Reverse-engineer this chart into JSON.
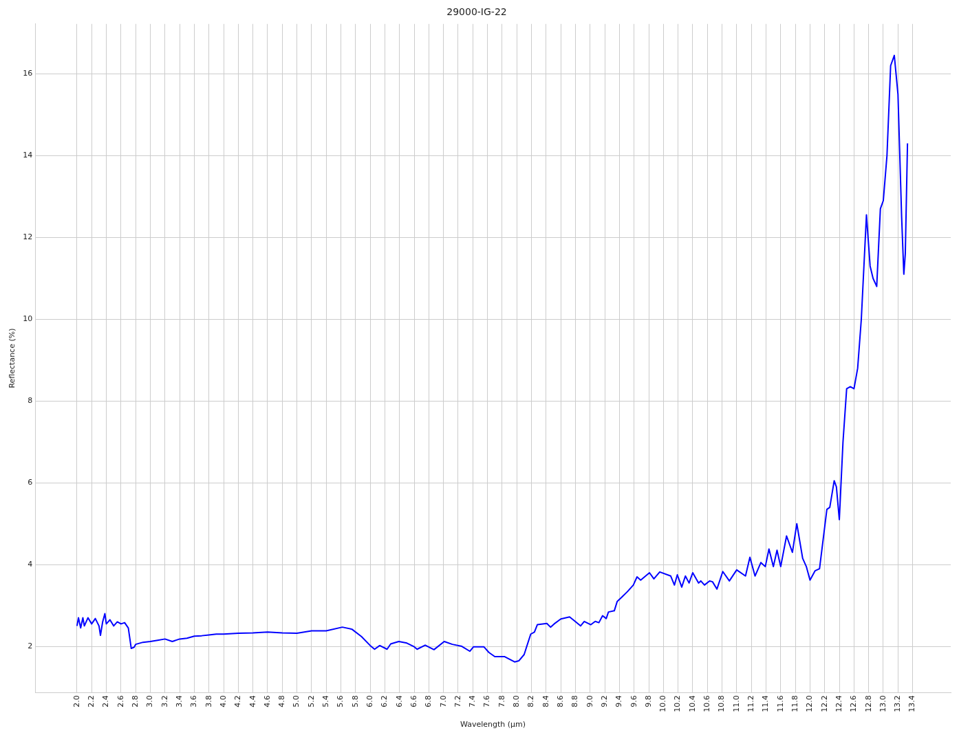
{
  "chart_data": {
    "type": "line",
    "title": "29000-IG-22",
    "xlabel": "Wavelength (μm)",
    "ylabel": "Reflectance (%)",
    "xlim": [
      1.43,
      13.92
    ],
    "ylim": [
      0.87,
      17.22
    ],
    "xticks": [
      {
        "value": 2,
        "label": "2.0"
      },
      {
        "value": 2.2,
        "label": "2.2"
      },
      {
        "value": 2.4,
        "label": "2.4"
      },
      {
        "value": 2.6,
        "label": "2.6"
      },
      {
        "value": 2.8,
        "label": "2.8"
      },
      {
        "value": 3,
        "label": "3.0"
      },
      {
        "value": 3.2,
        "label": "3.2"
      },
      {
        "value": 3.4,
        "label": "3.4"
      },
      {
        "value": 3.6,
        "label": "3.6"
      },
      {
        "value": 3.8,
        "label": "3.8"
      },
      {
        "value": 4,
        "label": "4.0"
      },
      {
        "value": 4.2,
        "label": "4.2"
      },
      {
        "value": 4.4,
        "label": "4.4"
      },
      {
        "value": 4.6,
        "label": "4.6"
      },
      {
        "value": 4.8,
        "label": "4.8"
      },
      {
        "value": 5,
        "label": "5.0"
      },
      {
        "value": 5.2,
        "label": "5.2"
      },
      {
        "value": 5.4,
        "label": "5.4"
      },
      {
        "value": 5.6,
        "label": "5.6"
      },
      {
        "value": 5.8,
        "label": "5.8"
      },
      {
        "value": 6,
        "label": "6.0"
      },
      {
        "value": 6.2,
        "label": "6.2"
      },
      {
        "value": 6.4,
        "label": "6.4"
      },
      {
        "value": 6.6,
        "label": "6.6"
      },
      {
        "value": 6.8,
        "label": "6.8"
      },
      {
        "value": 7,
        "label": "7.0"
      },
      {
        "value": 7.2,
        "label": "7.2"
      },
      {
        "value": 7.4,
        "label": "7.4"
      },
      {
        "value": 7.6,
        "label": "7.6"
      },
      {
        "value": 7.8,
        "label": "7.8"
      },
      {
        "value": 8,
        "label": "8.0"
      },
      {
        "value": 8.2,
        "label": "8.2"
      },
      {
        "value": 8.4,
        "label": "8.4"
      },
      {
        "value": 8.6,
        "label": "8.6"
      },
      {
        "value": 8.8,
        "label": "8.8"
      },
      {
        "value": 9,
        "label": "9.0"
      },
      {
        "value": 9.2,
        "label": "9.2"
      },
      {
        "value": 9.4,
        "label": "9.4"
      },
      {
        "value": 9.6,
        "label": "9.6"
      },
      {
        "value": 9.8,
        "label": "9.8"
      },
      {
        "value": 10,
        "label": "10.0"
      },
      {
        "value": 10.2,
        "label": "10.2"
      },
      {
        "value": 10.4,
        "label": "10.4"
      },
      {
        "value": 10.6,
        "label": "10.6"
      },
      {
        "value": 10.8,
        "label": "10.8"
      },
      {
        "value": 11,
        "label": "11.0"
      },
      {
        "value": 11.2,
        "label": "11.2"
      },
      {
        "value": 11.4,
        "label": "11.4"
      },
      {
        "value": 11.6,
        "label": "11.6"
      },
      {
        "value": 11.8,
        "label": "11.8"
      },
      {
        "value": 12,
        "label": "12.0"
      },
      {
        "value": 12.2,
        "label": "12.2"
      },
      {
        "value": 12.4,
        "label": "12.4"
      },
      {
        "value": 12.6,
        "label": "12.6"
      },
      {
        "value": 12.8,
        "label": "12.8"
      },
      {
        "value": 13,
        "label": "13.0"
      },
      {
        "value": 13.2,
        "label": "13.2"
      },
      {
        "value": 13.4,
        "label": "13.4"
      }
    ],
    "yticks": [
      2,
      4,
      6,
      8,
      10,
      12,
      14,
      16
    ],
    "grid": true,
    "legend": false,
    "marker": "none",
    "line_style": "solid",
    "series": [
      {
        "color": "#0000ff",
        "x": [
          2.0,
          2.02,
          2.05,
          2.08,
          2.1,
          2.15,
          2.2,
          2.25,
          2.3,
          2.32,
          2.35,
          2.38,
          2.4,
          2.45,
          2.5,
          2.55,
          2.6,
          2.65,
          2.7,
          2.72,
          2.74,
          2.78,
          2.8,
          2.9,
          3.0,
          3.1,
          3.2,
          3.3,
          3.4,
          3.5,
          3.6,
          3.7,
          3.8,
          3.9,
          4.0,
          4.2,
          4.4,
          4.6,
          4.8,
          5.0,
          5.2,
          5.4,
          5.62,
          5.75,
          5.88,
          6.0,
          6.06,
          6.13,
          6.23,
          6.28,
          6.39,
          6.5,
          6.6,
          6.64,
          6.75,
          6.87,
          7.01,
          7.12,
          7.25,
          7.36,
          7.41,
          7.55,
          7.62,
          7.7,
          7.83,
          7.97,
          8.03,
          8.1,
          8.19,
          8.24,
          8.28,
          8.41,
          8.46,
          8.51,
          8.6,
          8.72,
          8.79,
          8.87,
          8.92,
          9.01,
          9.07,
          9.12,
          9.17,
          9.22,
          9.25,
          9.33,
          9.37,
          9.43,
          9.51,
          9.59,
          9.64,
          9.69,
          9.81,
          9.87,
          9.95,
          10.1,
          10.15,
          10.19,
          10.25,
          10.3,
          10.35,
          10.4,
          10.48,
          10.51,
          10.56,
          10.63,
          10.67,
          10.73,
          10.81,
          10.9,
          11.0,
          11.12,
          11.18,
          11.25,
          11.33,
          11.39,
          11.44,
          11.5,
          11.55,
          11.6,
          11.68,
          11.76,
          11.82,
          11.9,
          11.95,
          12.0,
          12.07,
          12.13,
          12.23,
          12.27,
          12.33,
          12.36,
          12.4,
          12.45,
          12.5,
          12.55,
          12.6,
          12.65,
          12.7,
          12.77,
          12.82,
          12.86,
          12.91,
          12.96,
          13.0,
          13.05,
          13.1,
          13.15,
          13.2,
          13.25,
          13.28,
          13.3,
          13.33
        ],
        "values": [
          2.5,
          2.7,
          2.45,
          2.7,
          2.5,
          2.7,
          2.55,
          2.68,
          2.5,
          2.27,
          2.6,
          2.8,
          2.55,
          2.65,
          2.5,
          2.6,
          2.55,
          2.58,
          2.45,
          2.2,
          1.95,
          1.98,
          2.05,
          2.1,
          2.12,
          2.15,
          2.18,
          2.12,
          2.18,
          2.2,
          2.25,
          2.26,
          2.28,
          2.3,
          2.3,
          2.32,
          2.33,
          2.35,
          2.33,
          2.32,
          2.38,
          2.38,
          2.47,
          2.42,
          2.24,
          2.02,
          1.93,
          2.02,
          1.93,
          2.06,
          2.12,
          2.08,
          1.99,
          1.93,
          2.03,
          1.92,
          2.12,
          2.05,
          2.0,
          1.88,
          1.99,
          1.99,
          1.85,
          1.75,
          1.75,
          1.62,
          1.65,
          1.8,
          2.3,
          2.35,
          2.53,
          2.56,
          2.47,
          2.55,
          2.67,
          2.72,
          2.62,
          2.5,
          2.61,
          2.53,
          2.61,
          2.58,
          2.75,
          2.68,
          2.84,
          2.87,
          3.1,
          3.2,
          3.34,
          3.5,
          3.7,
          3.62,
          3.8,
          3.65,
          3.82,
          3.72,
          3.5,
          3.75,
          3.45,
          3.72,
          3.55,
          3.8,
          3.55,
          3.6,
          3.5,
          3.6,
          3.58,
          3.4,
          3.83,
          3.6,
          3.87,
          3.72,
          4.18,
          3.72,
          4.05,
          3.95,
          4.38,
          3.95,
          4.35,
          3.95,
          4.7,
          4.3,
          5.0,
          4.15,
          3.95,
          3.62,
          3.85,
          3.9,
          5.35,
          5.4,
          6.05,
          5.9,
          5.1,
          7.0,
          8.3,
          8.35,
          8.3,
          8.8,
          10.0,
          12.55,
          11.3,
          11.0,
          10.8,
          12.7,
          12.9,
          14.0,
          16.2,
          16.45,
          15.5,
          12.5,
          11.1,
          11.6,
          14.3
        ]
      }
    ]
  }
}
